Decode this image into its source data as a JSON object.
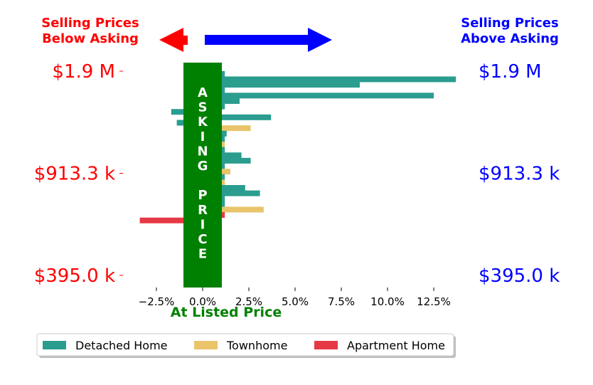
{
  "chart_data": {
    "type": "bar",
    "orientation": "horizontal",
    "xlim": [
      -3.5,
      13.8
    ],
    "xticks": [
      -2.5,
      0.0,
      2.5,
      5.0,
      7.5,
      10.0,
      12.5
    ],
    "xtick_labels": [
      "−2.5%",
      "0.0%",
      "2.5%",
      "5.0%",
      "7.5%",
      "10.0%",
      "12.5%"
    ],
    "xlabel": "At Listed Price",
    "left_ticks": [
      "$1.9 M",
      "$913.3 k",
      "$395.0 k"
    ],
    "right_ticks": [
      "$1.9 M",
      "$913.3 k",
      "$395.0 k"
    ],
    "price_range": [
      395000,
      1900000
    ],
    "band_text": "ASKING PRICE",
    "band_letters": [
      "A",
      "S",
      "K",
      "I",
      "N",
      "G",
      "",
      "P",
      "R",
      "I",
      "C",
      "E"
    ],
    "annotations": {
      "left": [
        "Selling Prices",
        "Below Asking"
      ],
      "right": [
        "Selling Prices",
        "Above Asking"
      ]
    },
    "colors": {
      "detached": "#2a9d8f",
      "townhome": "#e9c46a",
      "apartment": "#e63946",
      "band": "#008000",
      "left_text": "#ff0000",
      "right_text": "#0000ff"
    },
    "legend": {
      "position": "bottom",
      "entries": [
        {
          "name": "Detached Home",
          "key": "detached"
        },
        {
          "name": "Townhome",
          "key": "townhome"
        },
        {
          "name": "Apartment Home",
          "key": "apartment"
        }
      ]
    },
    "bars": [
      {
        "price": 1880000,
        "value": 1.2,
        "type": "detached"
      },
      {
        "price": 1840000,
        "value": 13.7,
        "type": "detached"
      },
      {
        "price": 1800000,
        "value": 8.5,
        "type": "detached"
      },
      {
        "price": 1760000,
        "value": 1.2,
        "type": "detached"
      },
      {
        "price": 1720000,
        "value": 12.5,
        "type": "detached"
      },
      {
        "price": 1680000,
        "value": 2.0,
        "type": "detached"
      },
      {
        "price": 1640000,
        "value": 1.2,
        "type": "detached"
      },
      {
        "price": 1600000,
        "value": -1.7,
        "type": "detached"
      },
      {
        "price": 1560000,
        "value": 3.7,
        "type": "detached"
      },
      {
        "price": 1520000,
        "value": -1.4,
        "type": "detached"
      },
      {
        "price": 1480000,
        "value": 2.6,
        "type": "townhome"
      },
      {
        "price": 1440000,
        "value": 1.3,
        "type": "detached"
      },
      {
        "price": 1400000,
        "value": 1.2,
        "type": "detached"
      },
      {
        "price": 1360000,
        "value": 1.2,
        "type": "townhome"
      },
      {
        "price": 1320000,
        "value": 1.2,
        "type": "detached"
      },
      {
        "price": 1280000,
        "value": 2.1,
        "type": "detached"
      },
      {
        "price": 1240000,
        "value": 2.6,
        "type": "detached"
      },
      {
        "price": 1200000,
        "value": 1.2,
        "type": "detached"
      },
      {
        "price": 1160000,
        "value": 1.5,
        "type": "townhome"
      },
      {
        "price": 1120000,
        "value": 1.2,
        "type": "detached"
      },
      {
        "price": 1080000,
        "value": 1.2,
        "type": "townhome"
      },
      {
        "price": 1040000,
        "value": 2.3,
        "type": "detached"
      },
      {
        "price": 1000000,
        "value": 3.1,
        "type": "detached"
      },
      {
        "price": 960000,
        "value": 1.2,
        "type": "detached"
      },
      {
        "price": 920000,
        "value": 1.2,
        "type": "detached"
      },
      {
        "price": 880000,
        "value": 3.3,
        "type": "townhome"
      },
      {
        "price": 840000,
        "value": 1.2,
        "type": "apartment"
      },
      {
        "price": 800000,
        "value": -3.4,
        "type": "apartment"
      }
    ]
  }
}
